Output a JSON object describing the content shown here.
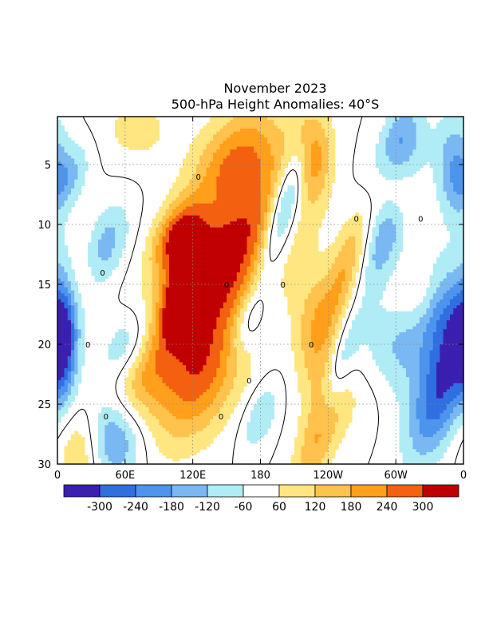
{
  "chart_data": {
    "type": "heatmap",
    "title": "November 2023",
    "subtitle": "500-hPa Height Anomalies: 40°S",
    "xlabel": "",
    "ylabel": "",
    "x_ticks": [
      "0",
      "60E",
      "120E",
      "180",
      "120W",
      "60W",
      "0"
    ],
    "x_tick_values": [
      0,
      60,
      120,
      180,
      240,
      300,
      360
    ],
    "y_ticks": [
      "5",
      "10",
      "15",
      "20",
      "25",
      "30"
    ],
    "y_tick_values": [
      5,
      10,
      15,
      20,
      25,
      30
    ],
    "xlim": [
      0,
      360
    ],
    "ylim": [
      1,
      30
    ],
    "y_inverted": true,
    "grid": "dotted",
    "contour_label": "0",
    "colorbar": {
      "levels": [
        -300,
        -240,
        -180,
        -120,
        -60,
        60,
        120,
        180,
        240,
        300
      ],
      "labels": [
        "-300",
        "-240",
        "-180",
        "-120",
        "-60",
        "60",
        "120",
        "180",
        "240",
        "300"
      ],
      "colors": [
        "#3b1fb0",
        "#2f6fe0",
        "#4c94ec",
        "#7ab8f3",
        "#b0ecf5",
        "#ffffff",
        "#ffe680",
        "#ffc24d",
        "#ff9f1a",
        "#f26010",
        "#c00000"
      ]
    },
    "features": [
      {
        "lon": 170,
        "day": 11,
        "value": 180,
        "sx": 30,
        "sd": 5,
        "tilt": -3,
        "shape": "blob"
      },
      {
        "lon": 130,
        "day": 14,
        "value": 230,
        "sx": 30,
        "sd": 6,
        "tilt": -3,
        "shape": "blob"
      },
      {
        "lon": 112,
        "day": 16,
        "value": 300,
        "sx": 12,
        "sd": 2.5,
        "tilt": -3,
        "shape": "blob"
      },
      {
        "lon": 107,
        "day": 11,
        "value": 240,
        "sx": 14,
        "sd": 2,
        "tilt": -3,
        "shape": "blob"
      },
      {
        "lon": 125,
        "day": 23,
        "value": 220,
        "sx": 26,
        "sd": 4,
        "tilt": -3,
        "shape": "blob"
      },
      {
        "lon": 160,
        "day": 4,
        "value": 160,
        "sx": 25,
        "sd": 3,
        "tilt": -3,
        "shape": "blob"
      },
      {
        "lon": 226,
        "day": 4,
        "value": 200,
        "sx": 12,
        "sd": 3,
        "tilt": 0,
        "shape": "blob"
      },
      {
        "lon": 255,
        "day": 14,
        "value": 180,
        "sx": 11,
        "sd": 4,
        "tilt": -3,
        "shape": "blob"
      },
      {
        "lon": 228,
        "day": 19,
        "value": 150,
        "sx": 14,
        "sd": 4,
        "tilt": 0,
        "shape": "blob"
      },
      {
        "lon": 230,
        "day": 28,
        "value": 170,
        "sx": 12,
        "sd": 4,
        "tilt": -3,
        "shape": "blob"
      },
      {
        "lon": 300,
        "day": 7,
        "value": 130,
        "sx": 12,
        "sd": 2,
        "tilt": 0,
        "shape": "blob"
      },
      {
        "lon": 20,
        "day": 14,
        "value": 100,
        "sx": 14,
        "sd": 2.5,
        "tilt": -3,
        "shape": "blob"
      },
      {
        "lon": 75,
        "day": 23,
        "value": 110,
        "sx": 16,
        "sd": 2.5,
        "tilt": -3,
        "shape": "blob"
      },
      {
        "lon": 20,
        "day": 29,
        "value": 140,
        "sx": 14,
        "sd": 2.5,
        "tilt": 0,
        "shape": "blob"
      },
      {
        "lon": 70,
        "day": 2,
        "value": 90,
        "sx": 22,
        "sd": 2,
        "tilt": 0,
        "shape": "blob"
      },
      {
        "lon": 320,
        "day": 16,
        "value": 100,
        "sx": 20,
        "sd": 2,
        "tilt": -3,
        "shape": "blob"
      },
      {
        "lon": 270,
        "day": 24,
        "value": 100,
        "sx": 25,
        "sd": 3,
        "tilt": -3,
        "shape": "blob"
      },
      {
        "lon": 200,
        "day": 9,
        "value": -260,
        "sx": 9,
        "sd": 4,
        "tilt": -3,
        "shape": "blob"
      },
      {
        "lon": 290,
        "day": 11,
        "value": -170,
        "sx": 12,
        "sd": 3,
        "tilt": -3,
        "shape": "blob"
      },
      {
        "lon": 305,
        "day": 20,
        "value": -170,
        "sx": 30,
        "sd": 4,
        "tilt": -3,
        "shape": "blob"
      },
      {
        "lon": 340,
        "day": 24,
        "value": -270,
        "sx": 16,
        "sd": 4,
        "tilt": -3,
        "shape": "blob"
      },
      {
        "lon": 300,
        "day": 5,
        "value": -150,
        "sx": 16,
        "sd": 2.5,
        "tilt": -3,
        "shape": "blob"
      },
      {
        "lon": 352,
        "day": 5,
        "value": -170,
        "sx": 12,
        "sd": 3,
        "tilt": 0,
        "shape": "blob"
      },
      {
        "lon": 345,
        "day": 17,
        "value": -160,
        "sx": 14,
        "sd": 3,
        "tilt": 0,
        "shape": "blob"
      },
      {
        "lon": 5,
        "day": 19,
        "value": -260,
        "sx": 9,
        "sd": 4,
        "tilt": 0,
        "shape": "blob"
      },
      {
        "lon": 40,
        "day": 12,
        "value": -180,
        "sx": 14,
        "sd": 2.5,
        "tilt": -3,
        "shape": "blob"
      },
      {
        "lon": 50,
        "day": 28,
        "value": -200,
        "sx": 18,
        "sd": 2.5,
        "tilt": 0,
        "shape": "blob"
      },
      {
        "lon": 250,
        "day": 22,
        "value": -130,
        "sx": 8,
        "sd": 3,
        "tilt": -3,
        "shape": "blob"
      },
      {
        "lon": 170,
        "day": 18,
        "value": -130,
        "sx": 10,
        "sd": 2,
        "tilt": -3,
        "shape": "blob"
      },
      {
        "lon": 180,
        "day": 26,
        "value": -120,
        "sx": 10,
        "sd": 2,
        "tilt": -3,
        "shape": "blob"
      },
      {
        "lon": 145,
        "day": 9,
        "value": -60,
        "sx": 14,
        "sd": 1.5,
        "tilt": -3,
        "shape": "blob"
      },
      {
        "lon": 10,
        "day": 6,
        "value": -120,
        "sx": 12,
        "sd": 2,
        "tilt": -3,
        "shape": "blob"
      },
      {
        "lon": 60,
        "day": 20,
        "value": -120,
        "sx": 14,
        "sd": 2,
        "tilt": -3,
        "shape": "blob"
      },
      {
        "lon": 305,
        "day": 2,
        "value": -100,
        "sx": 12,
        "sd": 2,
        "tilt": -3,
        "shape": "blob"
      }
    ]
  }
}
